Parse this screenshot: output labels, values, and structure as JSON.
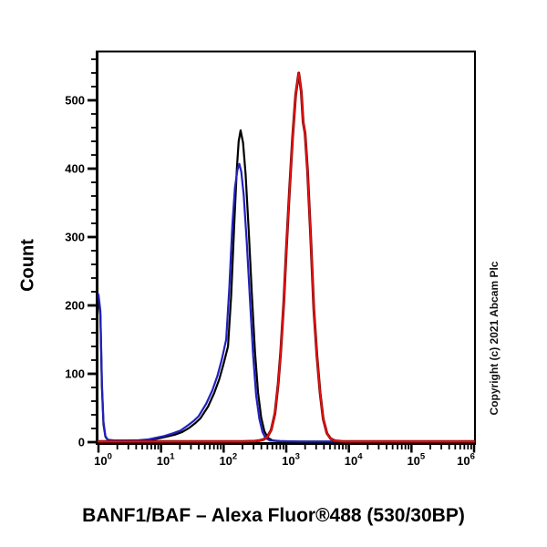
{
  "title": "BANF1/BAF – Alexa Fluor®488 (530/30BP)",
  "y_axis_title": "Count",
  "copyright": "Copyright (c) 2021 Abcam Plc",
  "chart_data": {
    "type": "line",
    "subtype": "flow-cytometry-histogram",
    "title": "BANF1/BAF – Alexa Fluor®488 (530/30BP)",
    "xlabel": "",
    "ylabel": "Count",
    "x_scale": "log10",
    "x_decades": [
      0,
      6
    ],
    "x_tick_base": "10",
    "x_tick_exponents": [
      "0",
      "1",
      "2",
      "3",
      "4",
      "5",
      "6"
    ],
    "ylim": [
      0,
      570
    ],
    "y_major_ticks": [
      0,
      100,
      200,
      300,
      400,
      500
    ],
    "y_major_tick_labels": [
      "0",
      "100",
      "200",
      "300",
      "400",
      "500"
    ],
    "y_minor_step": 20,
    "grid": false,
    "legend": "none",
    "axis_color": "#000000",
    "series": [
      {
        "name": "black-curve",
        "color": "#000000",
        "stroke_width": 2.2,
        "peak": {
          "x_log10": 2.27,
          "count": 456
        },
        "points": [
          [
            0.0,
            210
          ],
          [
            0.03,
            186
          ],
          [
            0.055,
            80
          ],
          [
            0.08,
            26
          ],
          [
            0.11,
            8
          ],
          [
            0.15,
            3
          ],
          [
            0.25,
            2
          ],
          [
            0.45,
            2
          ],
          [
            0.65,
            2.5
          ],
          [
            0.8,
            3
          ],
          [
            0.93,
            5
          ],
          [
            1.08,
            8
          ],
          [
            1.22,
            11
          ],
          [
            1.34,
            15
          ],
          [
            1.45,
            21
          ],
          [
            1.55,
            28
          ],
          [
            1.63,
            35
          ],
          [
            1.75,
            52
          ],
          [
            1.85,
            72
          ],
          [
            1.93,
            92
          ],
          [
            2.0,
            115
          ],
          [
            2.07,
            140
          ],
          [
            2.12,
            215
          ],
          [
            2.17,
            320
          ],
          [
            2.21,
            400
          ],
          [
            2.24,
            440
          ],
          [
            2.27,
            456
          ],
          [
            2.31,
            438
          ],
          [
            2.35,
            392
          ],
          [
            2.4,
            310
          ],
          [
            2.45,
            218
          ],
          [
            2.5,
            132
          ],
          [
            2.55,
            72
          ],
          [
            2.6,
            36
          ],
          [
            2.65,
            16
          ],
          [
            2.71,
            6
          ],
          [
            2.78,
            2.5
          ],
          [
            2.9,
            1.5
          ],
          [
            3.2,
            1
          ],
          [
            4.0,
            1
          ],
          [
            5.0,
            1
          ],
          [
            6.0,
            1
          ]
        ]
      },
      {
        "name": "blue-curve",
        "color": "#2121bd",
        "stroke_width": 2.2,
        "peak": {
          "x_log10": 2.25,
          "count": 407
        },
        "points": [
          [
            0.0,
            216
          ],
          [
            0.03,
            192
          ],
          [
            0.055,
            86
          ],
          [
            0.08,
            30
          ],
          [
            0.11,
            9
          ],
          [
            0.15,
            3.5
          ],
          [
            0.25,
            2.5
          ],
          [
            0.45,
            2.5
          ],
          [
            0.65,
            3
          ],
          [
            0.8,
            4
          ],
          [
            0.9,
            6
          ],
          [
            1.05,
            9
          ],
          [
            1.19,
            13
          ],
          [
            1.31,
            17
          ],
          [
            1.42,
            24
          ],
          [
            1.52,
            31
          ],
          [
            1.6,
            38
          ],
          [
            1.72,
            56
          ],
          [
            1.82,
            76
          ],
          [
            1.9,
            97
          ],
          [
            1.97,
            121
          ],
          [
            2.04,
            150
          ],
          [
            2.09,
            225
          ],
          [
            2.14,
            318
          ],
          [
            2.18,
            372
          ],
          [
            2.22,
            398
          ],
          [
            2.25,
            407
          ],
          [
            2.28,
            396
          ],
          [
            2.32,
            362
          ],
          [
            2.37,
            292
          ],
          [
            2.42,
            208
          ],
          [
            2.47,
            128
          ],
          [
            2.52,
            68
          ],
          [
            2.57,
            34
          ],
          [
            2.62,
            15
          ],
          [
            2.67,
            6
          ],
          [
            2.74,
            2.5
          ],
          [
            2.87,
            1.5
          ],
          [
            3.2,
            1
          ],
          [
            4.0,
            1
          ],
          [
            5.0,
            1
          ],
          [
            6.0,
            1
          ]
        ]
      },
      {
        "name": "red-curve",
        "color": "#ee1010",
        "underlay_color": "#7c0404",
        "stroke_width": 1.6,
        "underlay_stroke_width": 3,
        "peak": {
          "x_log10": 3.2,
          "count": 540
        },
        "points": [
          [
            0.0,
            1
          ],
          [
            0.5,
            1
          ],
          [
            1.0,
            1
          ],
          [
            1.5,
            1
          ],
          [
            2.0,
            1
          ],
          [
            2.3,
            1
          ],
          [
            2.5,
            1.5
          ],
          [
            2.58,
            2.5
          ],
          [
            2.64,
            4
          ],
          [
            2.7,
            8
          ],
          [
            2.76,
            18
          ],
          [
            2.82,
            42
          ],
          [
            2.87,
            85
          ],
          [
            2.91,
            130
          ],
          [
            2.96,
            205
          ],
          [
            3.0,
            280
          ],
          [
            3.05,
            365
          ],
          [
            3.1,
            445
          ],
          [
            3.15,
            508
          ],
          [
            3.2,
            540
          ],
          [
            3.24,
            512
          ],
          [
            3.27,
            468
          ],
          [
            3.3,
            452
          ],
          [
            3.34,
            398
          ],
          [
            3.39,
            300
          ],
          [
            3.44,
            195
          ],
          [
            3.49,
            127
          ],
          [
            3.54,
            72
          ],
          [
            3.59,
            34
          ],
          [
            3.65,
            13
          ],
          [
            3.71,
            5
          ],
          [
            3.78,
            2
          ],
          [
            3.9,
            1
          ],
          [
            4.3,
            1
          ],
          [
            5.0,
            1
          ],
          [
            6.0,
            1
          ]
        ]
      }
    ]
  }
}
